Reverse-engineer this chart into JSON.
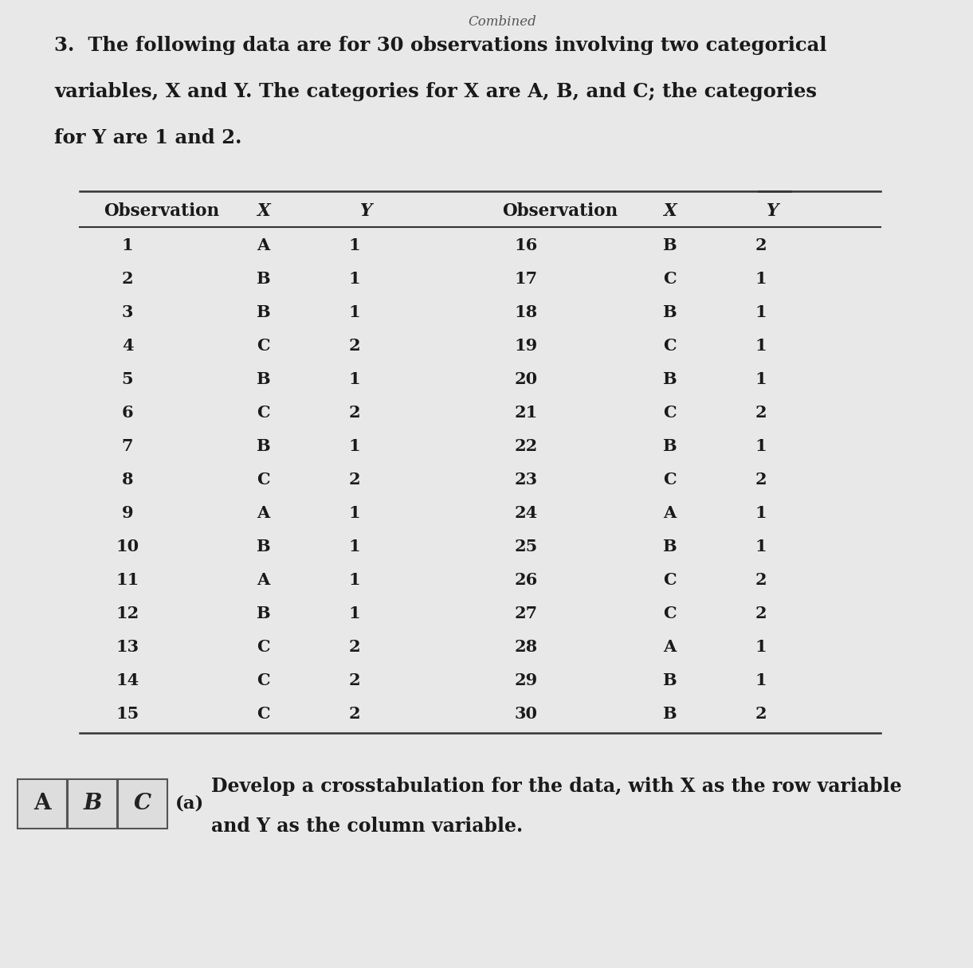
{
  "background_color": "#e8e8e8",
  "text_color": "#1a1a1a",
  "title_line1": "3.  The following data are for 30 observations involving two categorical",
  "title_line2": "variables, X and Y. The categories for X are A, B, and C; the categories",
  "title_line3": "for Y are 1 and 2.",
  "combined_text": "Combined",
  "observations_left": [
    1,
    2,
    3,
    4,
    5,
    6,
    7,
    8,
    9,
    10,
    11,
    12,
    13,
    14,
    15
  ],
  "x_left": [
    "A",
    "B",
    "B",
    "C",
    "B",
    "C",
    "B",
    "C",
    "A",
    "B",
    "A",
    "B",
    "C",
    "C",
    "C"
  ],
  "y_left": [
    1,
    1,
    1,
    2,
    1,
    2,
    1,
    2,
    1,
    1,
    1,
    1,
    2,
    2,
    2
  ],
  "observations_right": [
    16,
    17,
    18,
    19,
    20,
    21,
    22,
    23,
    24,
    25,
    26,
    27,
    28,
    29,
    30
  ],
  "x_right": [
    "B",
    "C",
    "B",
    "C",
    "B",
    "C",
    "B",
    "C",
    "A",
    "B",
    "C",
    "C",
    "A",
    "B",
    "B"
  ],
  "y_right": [
    2,
    1,
    1,
    1,
    1,
    2,
    1,
    2,
    1,
    1,
    2,
    2,
    1,
    1,
    2
  ],
  "part_a_line1": "Develop a crosstabulation for the data, with X as the row variable",
  "part_a_line2": "and Y as the column variable.",
  "part_label": "(a)",
  "box_letters": [
    "A",
    "B",
    "C"
  ]
}
